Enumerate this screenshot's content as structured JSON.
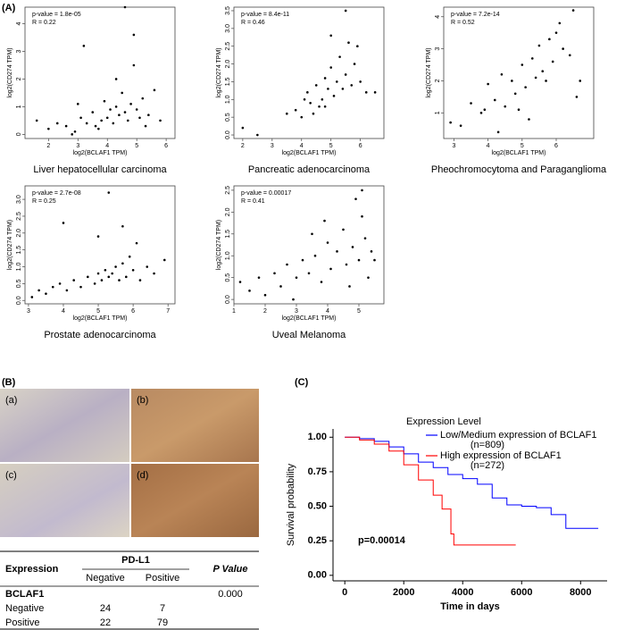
{
  "panel_labels": [
    "(A)",
    "(B)",
    "(C)"
  ],
  "chart_data": [
    {
      "type": "scatter",
      "title": "Liver hepatocellular carcinoma",
      "xlabel": "log2(BCLAF1 TPM)",
      "ylabel": "log2(CD274 TPM)",
      "annotations": [
        "p-value = 1.8e-05",
        "R = 0.22"
      ],
      "color": "#000000",
      "x": [
        1.6,
        2.0,
        2.3,
        2.6,
        2.9,
        3.1,
        3.3,
        3.5,
        3.6,
        3.8,
        3.9,
        4.0,
        4.1,
        4.2,
        4.3,
        4.4,
        4.5,
        4.6,
        4.7,
        4.8,
        4.9,
        5.0,
        5.1,
        5.2,
        5.4,
        5.6,
        5.8,
        3.2,
        4.6,
        4.9,
        3.0,
        4.3,
        5.3,
        2.8,
        3.7
      ],
      "values": [
        0.5,
        0.2,
        0.4,
        0.3,
        0.1,
        0.6,
        0.4,
        0.8,
        0.3,
        0.5,
        1.2,
        0.6,
        0.9,
        0.4,
        1.0,
        0.7,
        1.5,
        0.8,
        0.5,
        1.1,
        3.6,
        0.9,
        0.6,
        1.3,
        0.7,
        1.6,
        0.5,
        3.2,
        4.6,
        2.5,
        1.1,
        2.0,
        0.3,
        0.0,
        0.2
      ],
      "xlim": [
        1.2,
        6.3
      ],
      "ylim": [
        -0.15,
        4.6
      ],
      "xticks": [
        2,
        3,
        4,
        5,
        6
      ],
      "yticks": [
        0,
        1,
        2,
        3,
        4
      ]
    },
    {
      "type": "scatter",
      "title": "Pancreatic adenocarcinoma",
      "xlabel": "log2(BCLAF1 TPM)",
      "ylabel": "log2(CD274 TPM)",
      "annotations": [
        "p-value = 8.4e-11",
        "R = 0.46"
      ],
      "color": "#000000",
      "x": [
        2.0,
        2.5,
        3.5,
        3.8,
        4.0,
        4.2,
        4.3,
        4.5,
        4.6,
        4.7,
        4.8,
        4.9,
        5.0,
        5.1,
        5.2,
        5.3,
        5.4,
        5.5,
        5.6,
        5.7,
        5.8,
        6.0,
        6.2,
        4.4,
        5.0,
        5.5,
        4.1,
        5.9,
        6.5,
        4.8
      ],
      "values": [
        0.2,
        0.0,
        0.6,
        0.7,
        0.5,
        1.2,
        0.9,
        1.4,
        0.8,
        1.0,
        1.6,
        1.3,
        1.9,
        1.1,
        1.5,
        2.2,
        1.3,
        1.7,
        2.6,
        1.4,
        2.0,
        1.5,
        1.2,
        0.6,
        2.8,
        3.5,
        1.0,
        2.5,
        1.2,
        0.8
      ],
      "xlim": [
        1.7,
        6.8
      ],
      "ylim": [
        -0.1,
        3.6
      ],
      "xticks": [
        2,
        3,
        4,
        5,
        6
      ],
      "yticks": [
        {
          "value": 0,
          "label": "0.0"
        },
        0.5,
        {
          "value": 1,
          "label": "1.0"
        },
        1.5,
        {
          "value": 2,
          "label": "2.0"
        },
        2.5,
        {
          "value": 3,
          "label": "3.0"
        },
        3.5
      ]
    },
    {
      "type": "scatter",
      "title": "Pheochromocytoma and Paraganglioma",
      "xlabel": "log2(BCLAF1 TPM)",
      "ylabel": "log2(CD274 TPM)",
      "annotations": [
        "p-value = 7.2e-14",
        "R = 0.52"
      ],
      "color": "#000000",
      "x": [
        2.9,
        3.2,
        3.5,
        3.8,
        4.0,
        4.2,
        4.4,
        4.5,
        4.7,
        4.8,
        5.0,
        5.1,
        5.3,
        5.4,
        5.5,
        5.6,
        5.8,
        5.9,
        6.0,
        6.2,
        6.4,
        6.5,
        6.7,
        5.2,
        4.9,
        6.1,
        5.7,
        4.3,
        6.6,
        3.9
      ],
      "values": [
        0.7,
        0.6,
        1.3,
        1.0,
        1.9,
        1.4,
        2.2,
        1.2,
        2.0,
        1.6,
        2.5,
        1.8,
        2.7,
        2.1,
        3.1,
        2.3,
        3.3,
        2.6,
        3.5,
        3.0,
        2.8,
        4.2,
        2.0,
        0.8,
        1.1,
        3.8,
        2.0,
        0.4,
        1.5,
        1.1
      ],
      "xlim": [
        2.7,
        7.1
      ],
      "ylim": [
        0.2,
        4.3
      ],
      "xticks": [
        3,
        4,
        5,
        6
      ],
      "yticks": [
        1,
        2,
        3,
        4
      ]
    },
    {
      "type": "scatter",
      "title": "Prostate adenocarcinoma",
      "xlabel": "log2(BCLAF1 TPM)",
      "ylabel": "log2(CD274 TPM)",
      "annotations": [
        "p-value = 2.7e-08",
        "R = 0.25"
      ],
      "color": "#000000",
      "x": [
        3.1,
        3.3,
        3.5,
        3.7,
        3.9,
        4.1,
        4.3,
        4.5,
        4.7,
        4.9,
        5.0,
        5.1,
        5.2,
        5.3,
        5.4,
        5.5,
        5.6,
        5.7,
        5.8,
        5.9,
        6.0,
        6.2,
        6.4,
        6.6,
        6.9,
        5.3,
        4.0,
        5.7,
        6.1,
        5.0
      ],
      "values": [
        0.1,
        0.3,
        0.2,
        0.4,
        0.5,
        0.3,
        0.6,
        0.4,
        0.7,
        0.5,
        0.8,
        0.6,
        0.9,
        0.7,
        0.8,
        1.0,
        0.6,
        1.1,
        0.7,
        1.3,
        0.9,
        0.6,
        1.0,
        0.8,
        1.2,
        3.2,
        2.3,
        2.2,
        1.7,
        1.9
      ],
      "xlim": [
        2.9,
        7.2
      ],
      "ylim": [
        -0.1,
        3.4
      ],
      "xticks": [
        3,
        4,
        5,
        6,
        7
      ],
      "yticks": [
        {
          "value": 0,
          "label": "0.0"
        },
        0.5,
        {
          "value": 1,
          "label": "1.0"
        },
        1.5,
        {
          "value": 2,
          "label": "2.0"
        },
        2.5,
        {
          "value": 3,
          "label": "3.0"
        }
      ]
    },
    {
      "type": "scatter",
      "title": "Uveal Melanoma",
      "xlabel": "log2(BCLAF1 TPM)",
      "ylabel": "log2(CD274 TPM)",
      "annotations": [
        "p-value = 0.00017",
        "R = 0.41"
      ],
      "color": "#000000",
      "x": [
        1.2,
        1.5,
        1.8,
        2.0,
        2.3,
        2.5,
        2.7,
        3.0,
        3.2,
        3.4,
        3.6,
        3.8,
        4.0,
        4.1,
        4.3,
        4.5,
        4.6,
        4.8,
        4.9,
        5.0,
        5.1,
        5.2,
        5.3,
        5.4,
        3.9,
        4.7,
        5.1,
        2.9,
        3.5,
        5.5
      ],
      "values": [
        0.4,
        0.2,
        0.5,
        0.1,
        0.6,
        0.3,
        0.8,
        0.5,
        0.9,
        0.6,
        1.0,
        0.4,
        1.3,
        0.7,
        1.1,
        1.6,
        0.8,
        1.2,
        2.3,
        0.9,
        2.5,
        1.4,
        0.5,
        1.1,
        1.8,
        0.3,
        1.9,
        0.0,
        1.5,
        0.9
      ],
      "xlim": [
        1.0,
        5.8
      ],
      "ylim": [
        -0.1,
        2.6
      ],
      "xticks": [
        1,
        2,
        3,
        4,
        5
      ],
      "yticks": [
        {
          "value": 0,
          "label": "0.0"
        },
        0.5,
        {
          "value": 1,
          "label": "1.0"
        },
        1.5,
        {
          "value": 2,
          "label": "2.0"
        },
        2.5
      ]
    },
    {
      "type": "step",
      "xlabel": "Time in days",
      "ylabel": "Survival probability",
      "legend_title": "Expression Level",
      "annotation": "p=0.00014",
      "series": [
        {
          "name": "Low/Medium expression of BCLAF1",
          "n_label": "(n=809)",
          "color": "#0000ff",
          "x": [
            0,
            500,
            1000,
            1500,
            2000,
            2500,
            3000,
            3500,
            4000,
            4500,
            5000,
            5500,
            6000,
            6500,
            7000,
            7500,
            8600
          ],
          "values": [
            1,
            0.99,
            0.97,
            0.93,
            0.88,
            0.82,
            0.78,
            0.73,
            0.7,
            0.66,
            0.56,
            0.51,
            0.5,
            0.49,
            0.44,
            0.34,
            0.34
          ]
        },
        {
          "name": "High expression of BCLAF1",
          "n_label": "(n=272)",
          "color": "#ff0000",
          "x": [
            0,
            500,
            1000,
            1500,
            2000,
            2500,
            3000,
            3300,
            3600,
            3700,
            5800
          ],
          "values": [
            1,
            0.98,
            0.95,
            0.9,
            0.8,
            0.69,
            0.58,
            0.48,
            0.3,
            0.22,
            0.22
          ]
        }
      ],
      "xlim": [
        -400,
        8900
      ],
      "ylim": [
        -0.04,
        1.06
      ],
      "xticks": [
        0,
        2000,
        4000,
        6000,
        8000
      ],
      "yticks": [
        {
          "value": 0,
          "label": "0.00"
        },
        0.25,
        {
          "value": 0.5,
          "label": "0.50"
        },
        0.75,
        {
          "value": 1,
          "label": "1.00"
        }
      ]
    }
  ],
  "images": {
    "labels": [
      "(a)",
      "(b)",
      "(c)",
      "(d)"
    ]
  },
  "table": {
    "header": {
      "expression": "Expression",
      "group": "PD-L1",
      "p_value": "P Value",
      "columns": [
        "Negative",
        "Positive"
      ]
    },
    "rows": [
      {
        "label": "BCLAF1",
        "p": "0.000"
      },
      {
        "label": "Negative",
        "values": [
          24,
          7
        ]
      },
      {
        "label": "Positive",
        "values": [
          22,
          79
        ]
      }
    ]
  }
}
